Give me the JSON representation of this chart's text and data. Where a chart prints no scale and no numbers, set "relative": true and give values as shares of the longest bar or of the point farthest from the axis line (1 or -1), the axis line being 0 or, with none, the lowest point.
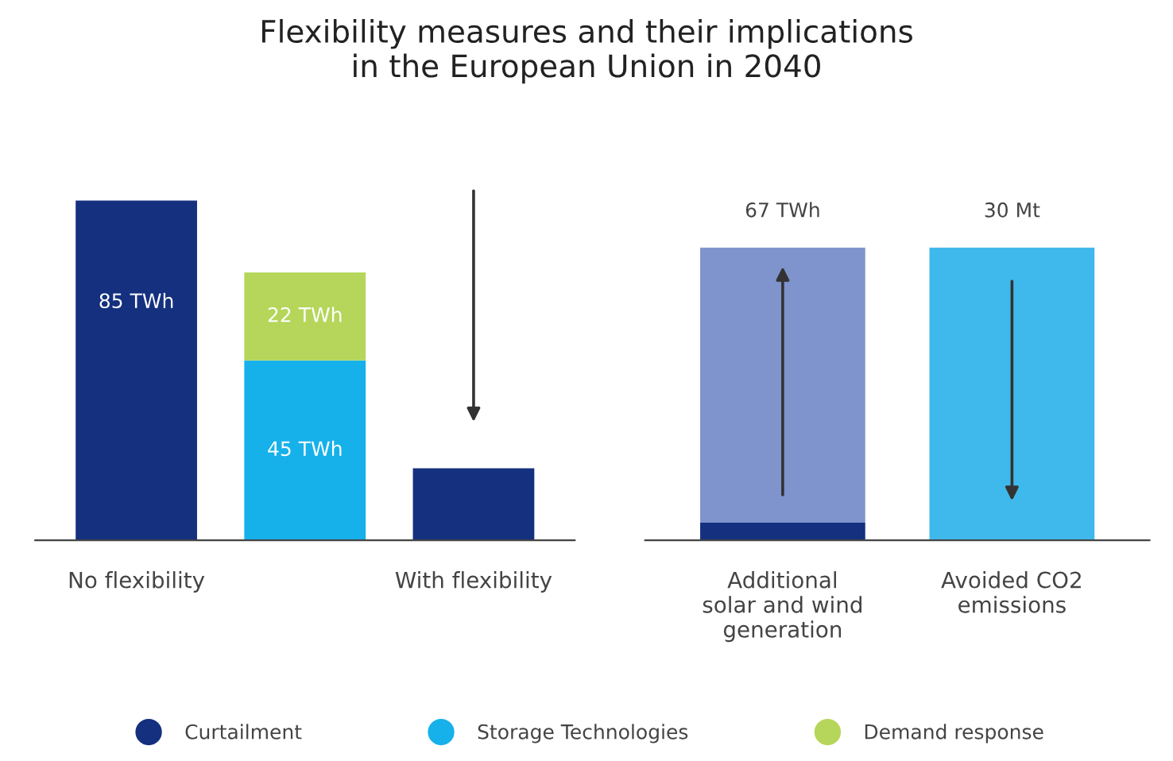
{
  "chart_data": [
    {
      "type": "bar",
      "title": "Flexibility measures and their implications\nin the European Union in 2040",
      "categories": [
        "No flexibility",
        null,
        "With flexibility"
      ],
      "stacked": true,
      "tick_labels": "x",
      "legend": "bottom",
      "series": [
        {
          "name": "Curtailment",
          "color": "#14307f",
          "values": [
            85,
            null,
            18
          ],
          "value_labels": [
            "85 TWh",
            null,
            null
          ]
        },
        {
          "name": "Storage Technologies",
          "color": "#16b1ea",
          "values": [
            null,
            45,
            null
          ],
          "value_labels": [
            null,
            "45 TWh",
            null
          ]
        },
        {
          "name": "Demand response",
          "color": "#b5d65a",
          "values": [
            null,
            22,
            null
          ],
          "value_labels": [
            null,
            "22 TWh",
            null
          ]
        }
      ]
    },
    {
      "type": "bar",
      "categories": [
        "Additional\nsolar and wind\ngeneration",
        "Avoided CO2\nemissions"
      ],
      "stacked": true,
      "relative": true,
      "annotations": [
        "67 TWh",
        "30 Mt"
      ],
      "series": [
        {
          "color": "#14307f",
          "values": [
            0.06,
            null
          ]
        },
        {
          "color": "#7f93cc",
          "values": [
            0.94,
            null
          ]
        },
        {
          "color": "#3fb8ec",
          "values": [
            null,
            1
          ]
        }
      ]
    }
  ]
}
